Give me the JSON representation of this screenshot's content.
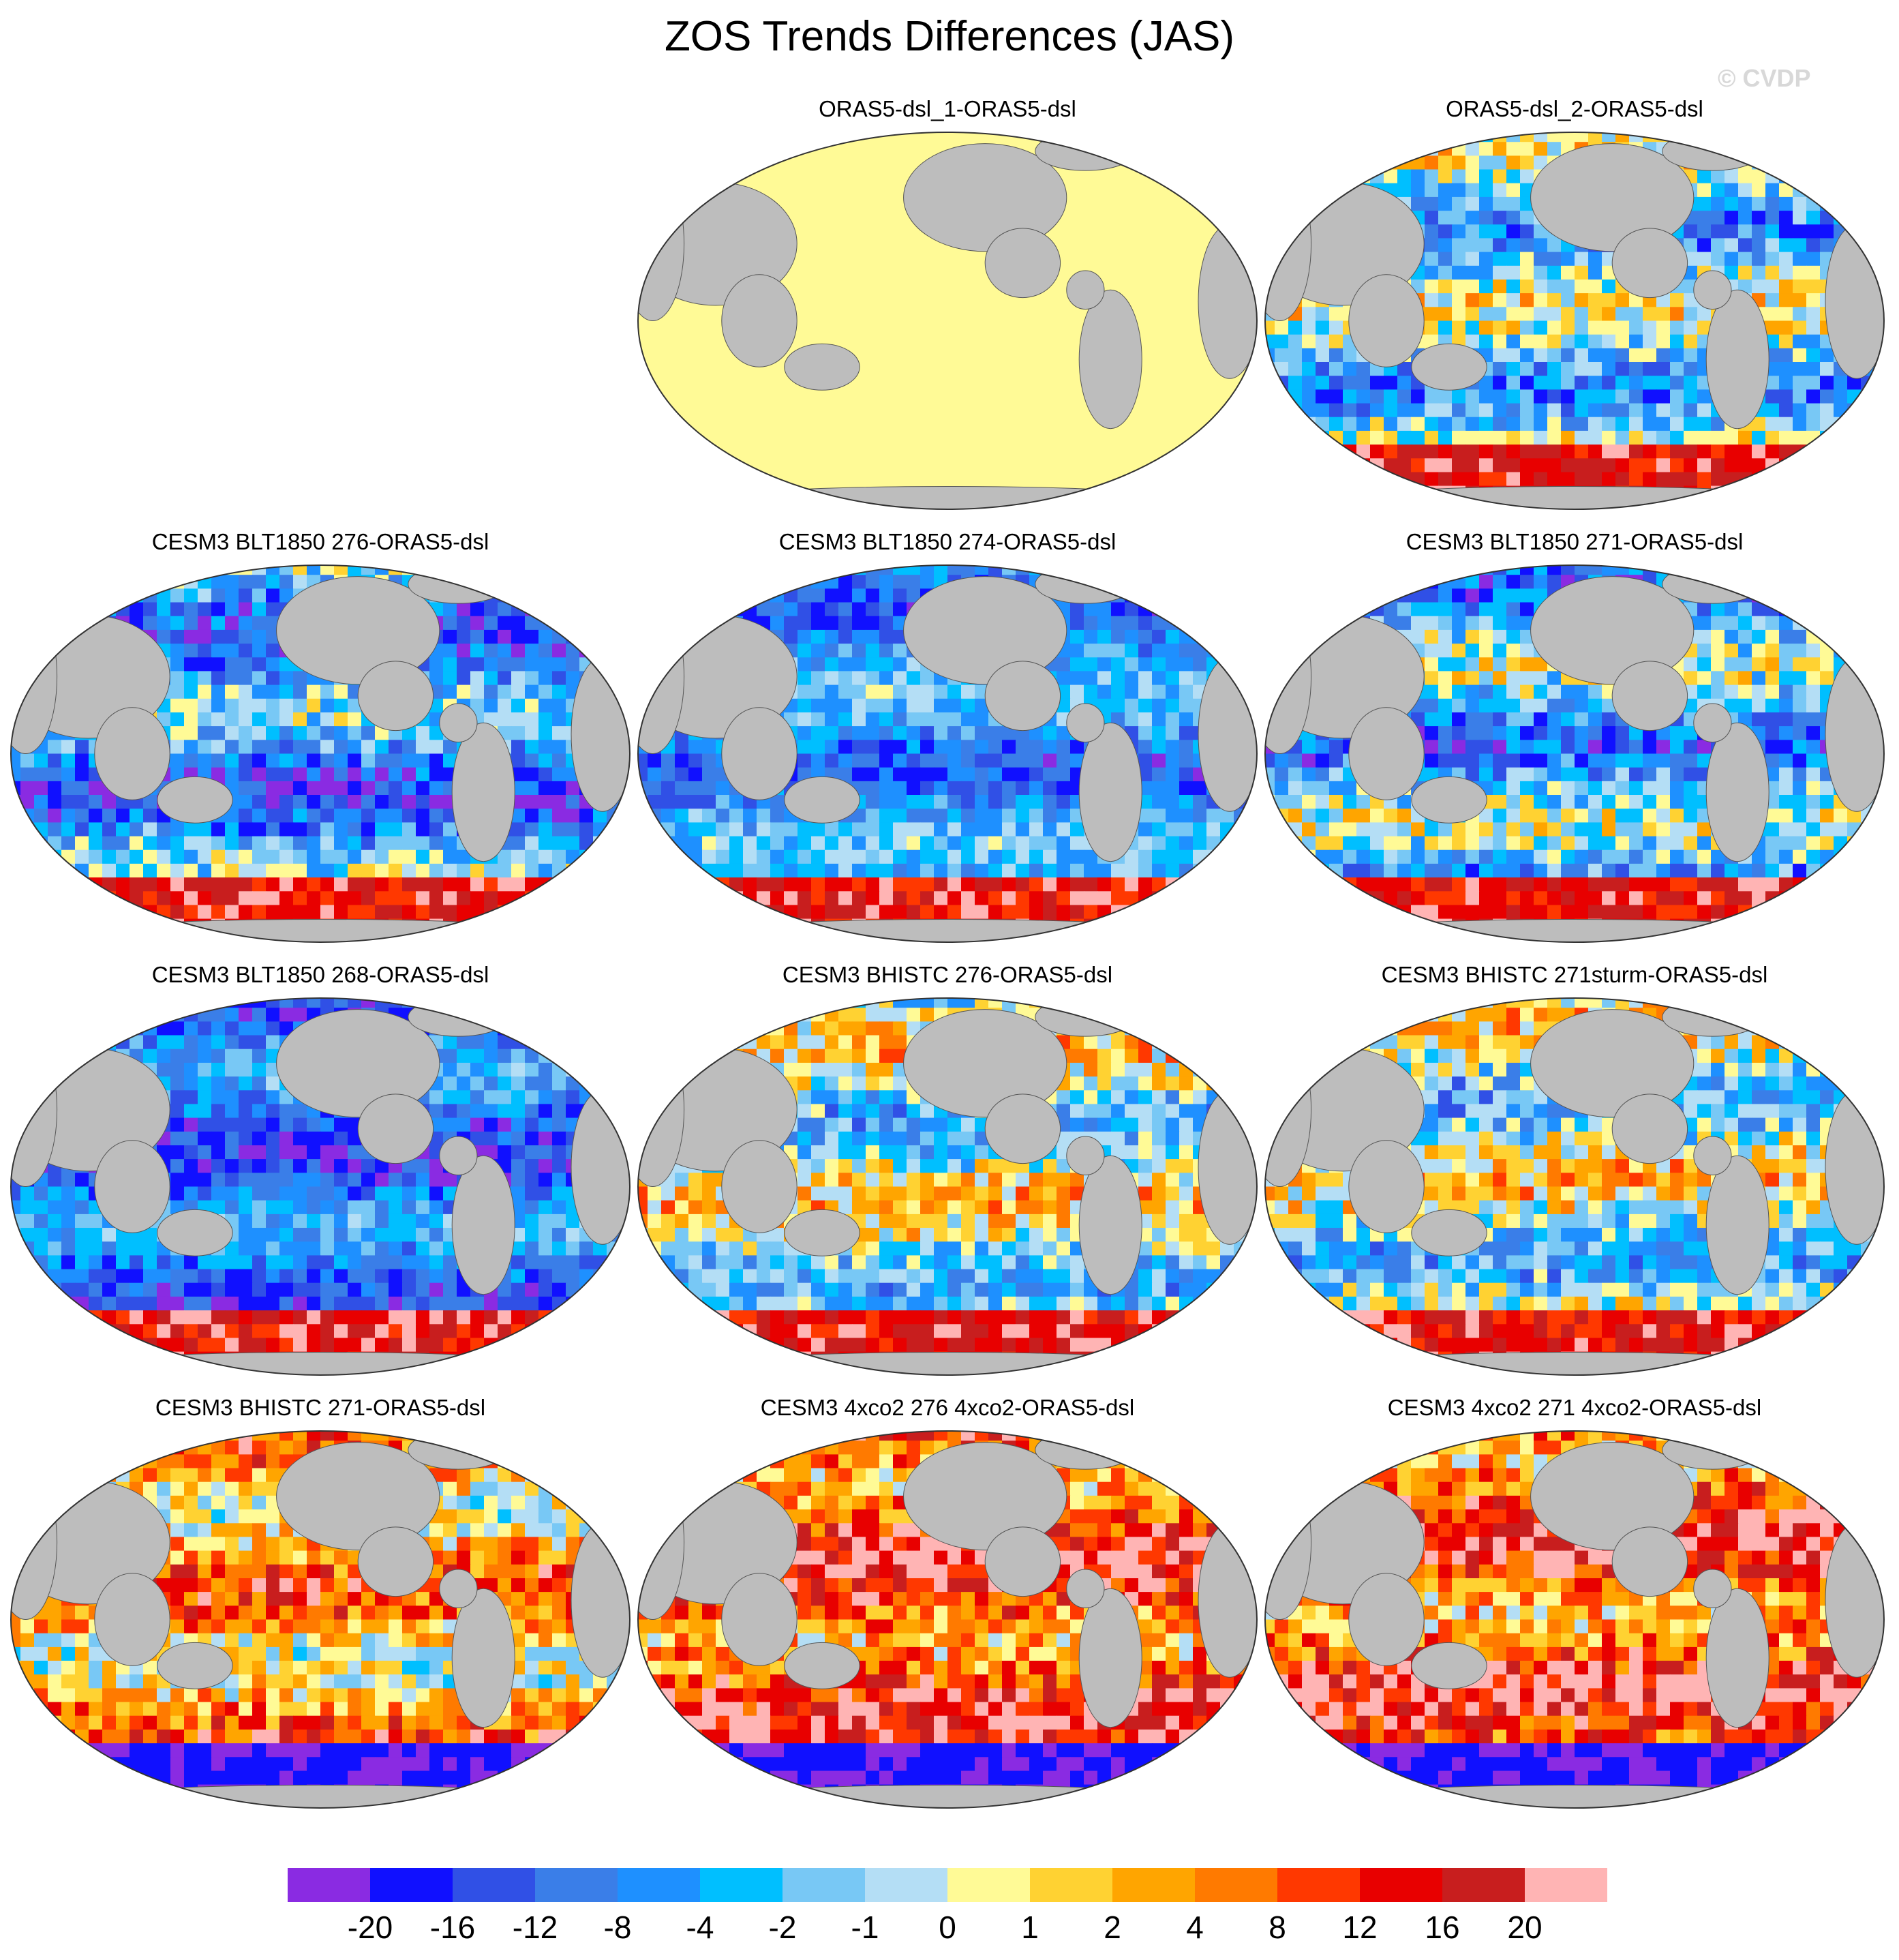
{
  "title": "ZOS Trends Differences (JAS)",
  "copyright": "© CVDP",
  "colorbar": {
    "colors": [
      "#8a2be2",
      "#1010ff",
      "#3050e6",
      "#3a7ee8",
      "#1e90ff",
      "#00bfff",
      "#78c8f5",
      "#b4def5",
      "#fffa96",
      "#ffd232",
      "#ffa500",
      "#ff7a00",
      "#ff3800",
      "#e80000",
      "#c81e1e",
      "#ffb4b4"
    ],
    "labels": [
      "-20",
      "-16",
      "-12",
      "-8",
      "-4",
      "-2",
      "-1",
      "0",
      "1",
      "2",
      "4",
      "8",
      "12",
      "16",
      "20"
    ]
  },
  "panels": [
    {
      "title": "ORAS5-dsl_1-ORAS5-dsl"
    },
    {
      "title": "ORAS5-dsl_2-ORAS5-dsl"
    },
    {
      "title": "CESM3 BLT1850 276-ORAS5-dsl"
    },
    {
      "title": "CESM3 BLT1850 274-ORAS5-dsl"
    },
    {
      "title": "CESM3 BLT1850 271-ORAS5-dsl"
    },
    {
      "title": "CESM3 BLT1850 268-ORAS5-dsl"
    },
    {
      "title": "CESM3 BHISTC 276-ORAS5-dsl"
    },
    {
      "title": "CESM3 BHISTC 271sturm-ORAS5-dsl"
    },
    {
      "title": "CESM3 BHISTC 271-ORAS5-dsl"
    },
    {
      "title": "CESM3 4xco2 276 4xco2-ORAS5-dsl"
    },
    {
      "title": "CESM3 4xco2 271 4xco2-ORAS5-dsl"
    }
  ]
}
